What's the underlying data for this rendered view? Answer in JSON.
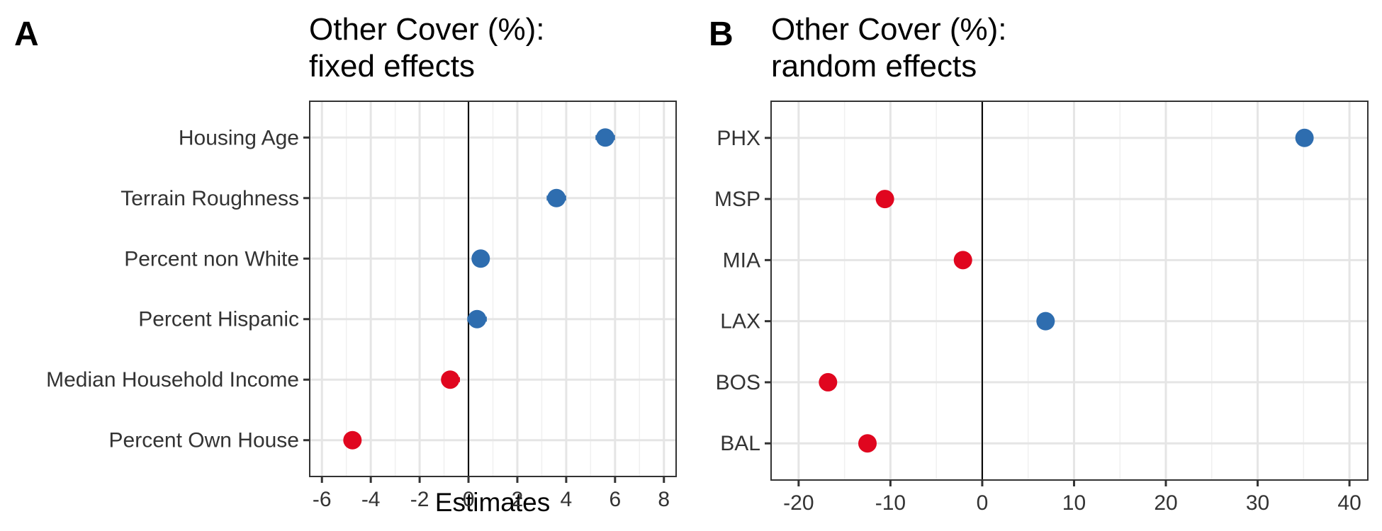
{
  "colors": {
    "positive": "#2e6daf",
    "negative": "#e0061f"
  },
  "chart_data": [
    {
      "panel": "A",
      "type": "scatter",
      "title_lines": [
        "Other Cover (%):",
        "fixed effects"
      ],
      "xlabel": "Estimates",
      "ylabel": "",
      "xlim": [
        -6.5,
        8.5
      ],
      "x_ticks": [
        -6,
        -4,
        -2,
        0,
        2,
        4,
        6,
        8
      ],
      "x_tick_labels": [
        "-6",
        "-4",
        "-2",
        "0",
        "2",
        "4",
        "6",
        "8"
      ],
      "categories": [
        "Housing Age",
        "Terrain Roughness",
        "Percent non White",
        "Percent Hispanic",
        "Median Household Income",
        "Percent Own House"
      ],
      "values": [
        5.6,
        3.6,
        0.5,
        0.35,
        -0.75,
        -4.75
      ],
      "ci_low": [
        5.2,
        3.2,
        0.25,
        -0.05,
        -1.1,
        -5.1
      ],
      "ci_high": [
        6.0,
        4.0,
        0.75,
        0.75,
        -0.35,
        -4.4
      ],
      "grid": true,
      "zero_line": true
    },
    {
      "panel": "B",
      "type": "scatter",
      "title_lines": [
        "Other Cover (%):",
        "random effects"
      ],
      "xlabel": "",
      "ylabel": "",
      "xlim": [
        -23,
        42
      ],
      "x_ticks": [
        -20,
        -10,
        0,
        10,
        20,
        30,
        40
      ],
      "x_tick_labels": [
        "-20",
        "-10",
        "0",
        "10",
        "20",
        "30",
        "40"
      ],
      "categories": [
        "PHX",
        "MSP",
        "MIA",
        "LAX",
        "BOS",
        "BAL"
      ],
      "values": [
        35.1,
        -10.6,
        -2.1,
        6.9,
        -16.8,
        -12.5
      ],
      "grid": true,
      "zero_line": true
    }
  ]
}
